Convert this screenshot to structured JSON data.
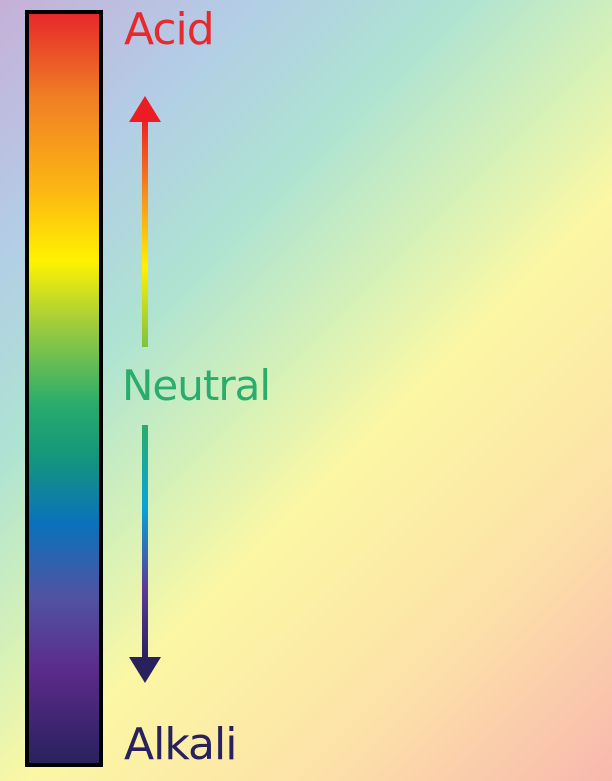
{
  "labels": {
    "acid": "Acid",
    "neutral": "Neutral",
    "alkali": "Alkali"
  },
  "colors": {
    "acid": "#e7282c",
    "neutral": "#2aac6c",
    "alkali": "#29215e",
    "bar_border": "#000000"
  }
}
